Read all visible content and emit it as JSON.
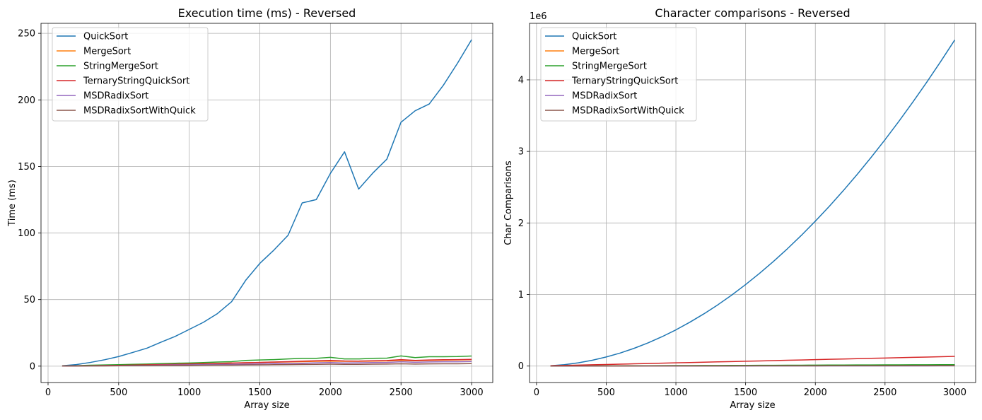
{
  "chart_data": [
    {
      "type": "line",
      "title": "Execution time (ms) - Reversed",
      "xlabel": "Array size",
      "ylabel": "Time (ms)",
      "xlim": [
        -50,
        3150
      ],
      "ylim": [
        -12.3,
        257.5
      ],
      "xticks": [
        0,
        500,
        1000,
        1500,
        2000,
        2500,
        3000
      ],
      "yticks": [
        0,
        50,
        100,
        150,
        200,
        250
      ],
      "grid": true,
      "legend": "upper left",
      "x": [
        100,
        200,
        300,
        400,
        500,
        600,
        700,
        800,
        900,
        1000,
        1100,
        1200,
        1300,
        1400,
        1500,
        1600,
        1700,
        1800,
        1900,
        2000,
        2100,
        2200,
        2300,
        2400,
        2500,
        2600,
        2700,
        2800,
        2900,
        3000
      ],
      "series": [
        {
          "name": "QuickSort",
          "color": "#1f77b4",
          "values": [
            0.3,
            1.2,
            2.8,
            4.8,
            7.2,
            10.3,
            13.5,
            18,
            22.3,
            27.6,
            32.9,
            39.5,
            48.4,
            64.5,
            77.2,
            87.2,
            98.3,
            122.6,
            125.1,
            144.8,
            161,
            133,
            145,
            155.5,
            183.2,
            191.8,
            196.9,
            211,
            227.5,
            245.2
          ]
        },
        {
          "name": "MergeSort",
          "color": "#ff7f0e",
          "values": [
            0.1,
            0.2,
            0.4,
            0.5,
            0.7,
            0.9,
            1.1,
            1.3,
            1.5,
            1.7,
            1.9,
            2.1,
            2.4,
            2.6,
            2.8,
            3,
            3.2,
            3.4,
            3.6,
            3.8,
            3.6,
            3.6,
            3.8,
            3.9,
            4.3,
            4,
            4.3,
            4.5,
            4.6,
            4.8
          ]
        },
        {
          "name": "StringMergeSort",
          "color": "#2ca02c",
          "values": [
            0.2,
            0.4,
            0.7,
            0.9,
            1.1,
            1.4,
            1.6,
            1.9,
            2.2,
            2.4,
            2.7,
            3.1,
            3.4,
            4.3,
            4.6,
            4.9,
            5.4,
            5.9,
            5.9,
            6.6,
            5.4,
            5.4,
            5.9,
            6,
            7.7,
            6.4,
            7.1,
            7.1,
            7.2,
            7.6
          ]
        },
        {
          "name": "TernaryStringQuickSort",
          "color": "#d62728",
          "values": [
            0.1,
            0.2,
            0.3,
            0.5,
            0.6,
            0.8,
            1,
            1.2,
            1.4,
            1.6,
            1.8,
            2,
            2.3,
            2.6,
            2.8,
            3.1,
            3.4,
            3.8,
            4,
            4.3,
            3.9,
            3.8,
            4,
            4.2,
            4.9,
            4.3,
            4.6,
            4.8,
            4.9,
            5.1
          ]
        },
        {
          "name": "MSDRadixSort",
          "color": "#9467bd",
          "values": [
            0.1,
            0.2,
            0.2,
            0.3,
            0.4,
            0.5,
            0.6,
            0.8,
            0.9,
            1,
            1.2,
            1.3,
            1.4,
            1.6,
            1.7,
            1.9,
            2.1,
            2.2,
            2.5,
            2.7,
            2.4,
            2.5,
            2.7,
            2.8,
            3.3,
            2.9,
            3.2,
            3.3,
            3.3,
            3.5
          ]
        },
        {
          "name": "MSDRadixSortWithQuick",
          "color": "#8c564b",
          "values": [
            0.1,
            0.1,
            0.2,
            0.2,
            0.3,
            0.3,
            0.4,
            0.5,
            0.5,
            0.6,
            0.7,
            0.8,
            0.8,
            0.9,
            1,
            1.1,
            1.2,
            1.3,
            1.4,
            1.5,
            1.4,
            1.4,
            1.5,
            1.6,
            1.8,
            1.6,
            1.7,
            1.8,
            1.8,
            1.9
          ]
        }
      ]
    },
    {
      "type": "line",
      "title": "Character comparisons - Reversed",
      "xlabel": "Array size",
      "ylabel": "Char Comparisons",
      "offset_label": "1e6",
      "xlim": [
        -50,
        3150
      ],
      "ylim": [
        -0.23,
        4.79
      ],
      "xticks": [
        0,
        500,
        1000,
        1500,
        2000,
        2500,
        3000
      ],
      "yticks": [
        0,
        1,
        2,
        3,
        4
      ],
      "grid": true,
      "legend": "upper left",
      "x": [
        100,
        200,
        300,
        400,
        500,
        600,
        700,
        800,
        900,
        1000,
        1100,
        1200,
        1300,
        1400,
        1500,
        1600,
        1700,
        1800,
        1900,
        2000,
        2100,
        2200,
        2300,
        2400,
        2500,
        2600,
        2700,
        2800,
        2900,
        3000
      ],
      "series": [
        {
          "name": "QuickSort",
          "color": "#1f77b4",
          "values": [
            0.005,
            0.02,
            0.045,
            0.081,
            0.127,
            0.182,
            0.248,
            0.324,
            0.41,
            0.506,
            0.613,
            0.729,
            0.855,
            0.992,
            1.139,
            1.296,
            1.463,
            1.64,
            1.827,
            2.025,
            2.232,
            2.45,
            2.678,
            2.916,
            3.164,
            3.422,
            3.691,
            3.969,
            4.258,
            4.557
          ]
        },
        {
          "name": "MergeSort",
          "color": "#ff7f0e",
          "values": [
            0.0003,
            0.0006,
            0.0009,
            0.0012,
            0.0015,
            0.0018,
            0.0021,
            0.0024,
            0.0027,
            0.003,
            0.0033,
            0.0036,
            0.0039,
            0.0042,
            0.0045,
            0.0048,
            0.0051,
            0.0054,
            0.0057,
            0.006,
            0.0063,
            0.0066,
            0.0069,
            0.0072,
            0.0075,
            0.0078,
            0.0081,
            0.0084,
            0.0087,
            0.009
          ]
        },
        {
          "name": "StringMergeSort",
          "color": "#2ca02c",
          "values": [
            0.0006,
            0.0013,
            0.002,
            0.0026,
            0.0033,
            0.004,
            0.0046,
            0.0053,
            0.006,
            0.0066,
            0.0073,
            0.008,
            0.0086,
            0.0093,
            0.01,
            0.0106,
            0.0113,
            0.012,
            0.0126,
            0.0133,
            0.014,
            0.0146,
            0.0153,
            0.016,
            0.0166,
            0.0173,
            0.018,
            0.0186,
            0.0193,
            0.02
          ]
        },
        {
          "name": "TernaryStringQuickSort",
          "color": "#d62728",
          "values": [
            0.0045,
            0.009,
            0.0135,
            0.018,
            0.0225,
            0.027,
            0.0315,
            0.036,
            0.0405,
            0.045,
            0.0495,
            0.054,
            0.0585,
            0.063,
            0.0675,
            0.072,
            0.0765,
            0.081,
            0.0855,
            0.09,
            0.0945,
            0.099,
            0.1035,
            0.108,
            0.1125,
            0.117,
            0.1215,
            0.126,
            0.1305,
            0.135
          ]
        },
        {
          "name": "MSDRadixSort",
          "color": "#9467bd",
          "values": [
            0.0001,
            0.0002,
            0.0003,
            0.0004,
            0.0005,
            0.0006,
            0.0007,
            0.0008,
            0.0009,
            0.001,
            0.0011,
            0.0012,
            0.0013,
            0.0014,
            0.0015,
            0.0016,
            0.0017,
            0.0018,
            0.0019,
            0.002,
            0.0021,
            0.0022,
            0.0023,
            0.0024,
            0.0025,
            0.0026,
            0.0027,
            0.0028,
            0.0029,
            0.003
          ]
        },
        {
          "name": "MSDRadixSortWithQuick",
          "color": "#8c564b",
          "values": [
            0.0002,
            0.0004,
            0.0006,
            0.0008,
            0.001,
            0.0012,
            0.0014,
            0.0016,
            0.0018,
            0.002,
            0.0022,
            0.0024,
            0.0026,
            0.0028,
            0.003,
            0.0032,
            0.0034,
            0.0036,
            0.0038,
            0.004,
            0.0042,
            0.0044,
            0.0046,
            0.0048,
            0.005,
            0.0052,
            0.0054,
            0.0056,
            0.0058,
            0.006
          ]
        }
      ]
    }
  ]
}
